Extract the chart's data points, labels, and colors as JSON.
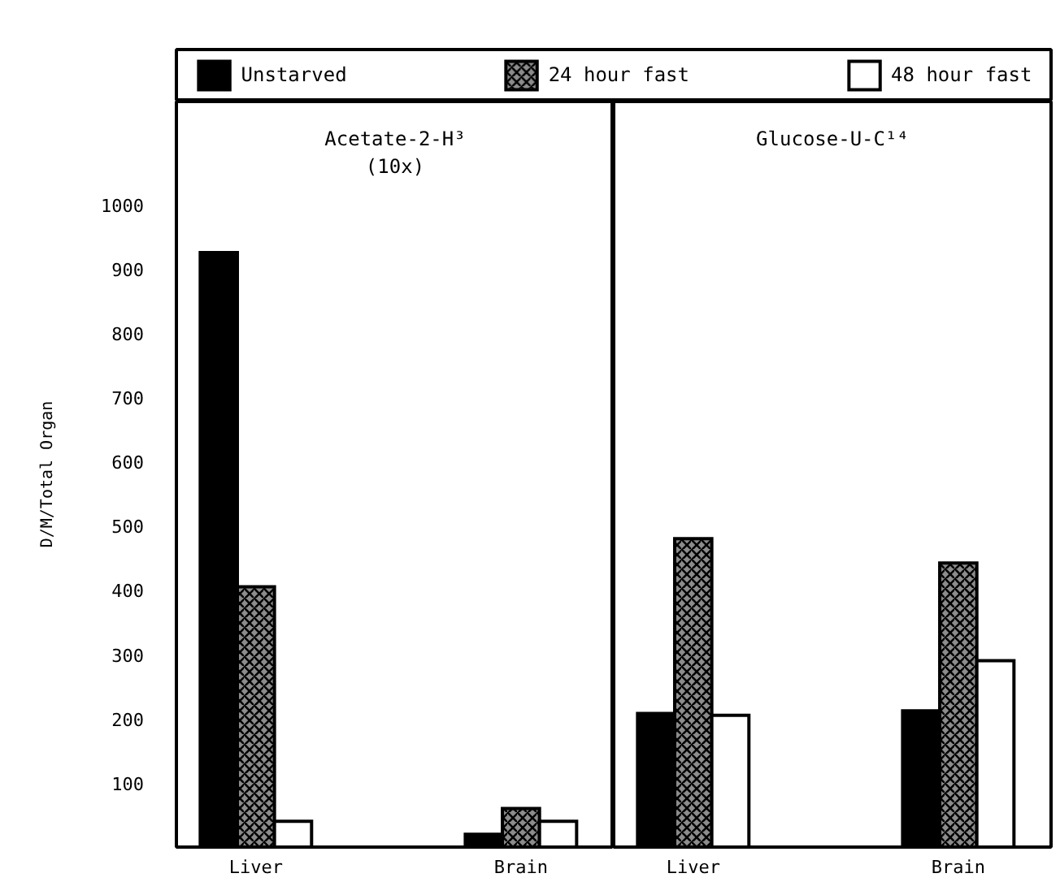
{
  "chart_data": [
    {
      "type": "bar",
      "title": "Acetate-2-H³\n(10x)",
      "ylabel": "D/M/Total Organ",
      "categories": [
        "Liver",
        "Brain"
      ],
      "series": [
        {
          "name": "Unstarved",
          "color": "#000000",
          "values": [
            925,
            20
          ]
        },
        {
          "name": "24 hour fast",
          "color": "#8c8c8c",
          "values": [
            405,
            60
          ]
        },
        {
          "name": "48 hour fast",
          "color": "#ffffff",
          "values": [
            40,
            40
          ]
        }
      ],
      "ylim": [
        0,
        1160
      ],
      "yticks": [
        100,
        200,
        300,
        400,
        500,
        600,
        700,
        800,
        900,
        1000
      ],
      "legend": "top"
    },
    {
      "type": "bar",
      "title": "Glucose-U-C¹⁴",
      "categories": [
        "Liver",
        "Brain"
      ],
      "series": [
        {
          "color": "#000000",
          "values": [
            208,
            212
          ]
        },
        {
          "color": "#8c8c8c",
          "values": [
            480,
            442
          ]
        },
        {
          "color": "#ffffff",
          "values": [
            205,
            290
          ]
        }
      ],
      "ylim": [
        0,
        1160
      ],
      "yticks": [
        100,
        200,
        300,
        400,
        500,
        600,
        700,
        800,
        900,
        1000
      ],
      "tick_labels": "x"
    }
  ]
}
